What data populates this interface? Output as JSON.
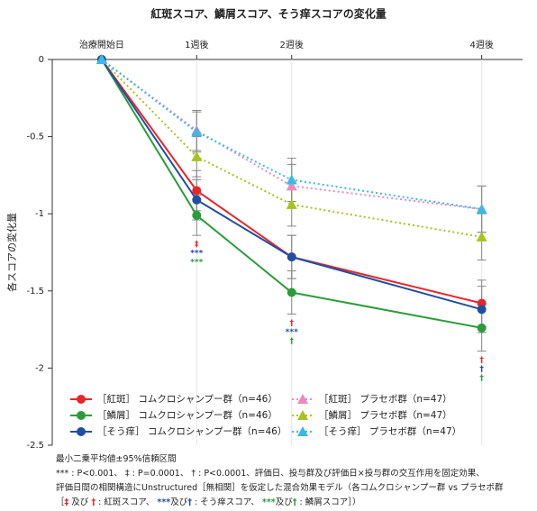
{
  "chart_data": {
    "type": "line",
    "title": "紅斑スコア、鱗屑スコア、そう痒スコアの変化量",
    "y_label": "各スコアの変化量",
    "x": [
      0,
      1,
      2,
      4
    ],
    "xlim": [
      -0.52,
      4.43
    ],
    "xticks": [
      {
        "value": 0,
        "label": "治療開始日"
      },
      {
        "value": 1,
        "label": "1週後"
      },
      {
        "value": 2,
        "label": "2週後"
      },
      {
        "value": 4,
        "label": "4週後"
      }
    ],
    "ylim": [
      -2.5,
      0
    ],
    "yticks": [
      0,
      -0.5,
      -1,
      -1.5,
      -2,
      -2.5
    ],
    "grid": "x",
    "legend": "lower left",
    "series": [
      {
        "name": "［紅斑］ コムクロシャンプー群（n=46）",
        "color": "#e8262a",
        "marker": "circle",
        "dash": false,
        "values": [
          0,
          -0.85,
          -1.28,
          -1.58
        ],
        "errors": [
          null,
          0.13,
          0.14,
          0.15
        ]
      },
      {
        "name": "［鱗屑］ コムクロシャンプー群（n=46）",
        "color": "#2a9d3a",
        "marker": "circle",
        "dash": false,
        "values": [
          0,
          -1.01,
          -1.51,
          -1.74
        ],
        "errors": [
          null,
          0.13,
          0.14,
          0.15
        ]
      },
      {
        "name": "［そう痒］ コムクロシャンプー群（n=46）",
        "color": "#1f4fa3",
        "marker": "circle",
        "dash": false,
        "values": [
          0,
          -0.91,
          -1.28,
          -1.62
        ],
        "errors": [
          null,
          0.13,
          0.14,
          0.15
        ]
      },
      {
        "name": "［紅斑］ プラセボ群（n=47）",
        "color": "#e98bb8",
        "marker": "triangle",
        "dash": true,
        "values": [
          0,
          -0.46,
          -0.82,
          -0.97
        ],
        "errors": [
          null,
          0.13,
          0.14,
          0.15
        ]
      },
      {
        "name": "［鱗屑］ プラセボ群（n=47）",
        "color": "#a8c21e",
        "marker": "triangle",
        "dash": true,
        "values": [
          0,
          -0.63,
          -0.94,
          -1.15
        ],
        "errors": [
          null,
          0.13,
          0.14,
          0.15
        ]
      },
      {
        "name": "［そう痒］ プラセボ群（n=47）",
        "color": "#3bb8e6",
        "marker": "triangle",
        "dash": true,
        "values": [
          0,
          -0.47,
          -0.78,
          -0.97
        ],
        "errors": [
          null,
          0.13,
          0.14,
          0.15
        ]
      }
    ],
    "significance": [
      {
        "x": 1,
        "marks": [
          {
            "text": "‡",
            "color": "#e8262a"
          },
          {
            "text": "***",
            "color": "#1f4fa3"
          },
          {
            "text": "***",
            "color": "#2a9d3a"
          }
        ]
      },
      {
        "x": 2,
        "marks": [
          {
            "text": "†",
            "color": "#e8262a"
          },
          {
            "text": "***",
            "color": "#1f4fa3"
          },
          {
            "text": "†",
            "color": "#2a9d3a"
          }
        ]
      },
      {
        "x": 4,
        "marks": [
          {
            "text": "†",
            "color": "#e8262a"
          },
          {
            "text": "†",
            "color": "#1f4fa3"
          },
          {
            "text": "†",
            "color": "#2a9d3a"
          }
        ]
      }
    ],
    "footnotes": [
      [
        {
          "text": "最小二乗平均値±95%信頼区間"
        }
      ],
      [
        {
          "text": "*** : P<0.001、 ‡ : P=0.0001、 † : P<0.0001、評価日、投与群及び評価日×投与群の交互作用を固定効果、"
        }
      ],
      [
        {
          "text": "評価日間の相関構造にUnstructured［無相関］を仮定した混合効果モデル（各コムクロシャンプー群 vs プラセボ群"
        }
      ],
      [
        {
          "text": "［"
        },
        {
          "text": "‡",
          "color": "#e8262a"
        },
        {
          "text": " 及び "
        },
        {
          "text": "†",
          "color": "#e8262a"
        },
        {
          "text": " : 紅斑スコア、 "
        },
        {
          "text": "***",
          "color": "#1f4fa3"
        },
        {
          "text": "及び"
        },
        {
          "text": "†",
          "color": "#1f4fa3"
        },
        {
          "text": " : そう痒スコア、 "
        },
        {
          "text": "***",
          "color": "#2a9d3a"
        },
        {
          "text": "及び"
        },
        {
          "text": "†",
          "color": "#2a9d3a"
        },
        {
          "text": " : 鱗屑スコア］）"
        }
      ]
    ]
  }
}
